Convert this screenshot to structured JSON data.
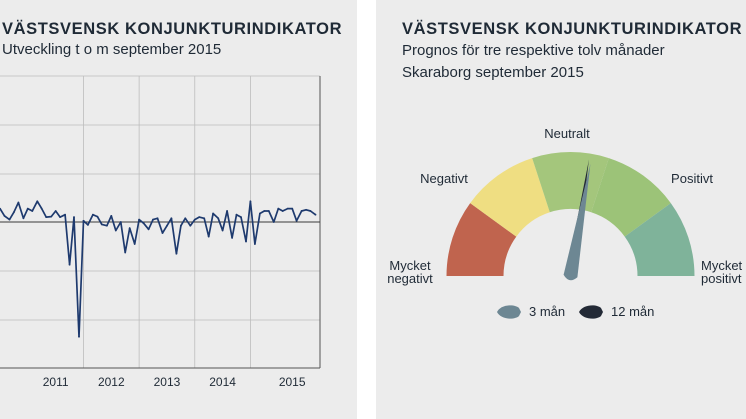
{
  "colors": {
    "panel_bg": "#ececec",
    "line": "#1e3a6e",
    "axis": "#555555",
    "grid": "#bdbdbd",
    "very_negative": "#c0644e",
    "negative": "#efde82",
    "neutral": "#a4c67c",
    "positive": "#9cc378",
    "very_positive": "#7fb39a",
    "needle_3m": "#6d8793",
    "needle_12m": "#232a36"
  },
  "left": {
    "title": "VÄSTSVENSK KONJUNKTURINDIKATOR",
    "subtitle": "Utveckling t o m september 2015"
  },
  "right": {
    "title": "VÄSTSVENSK KONJUNKTURINDIKATOR",
    "subtitle_1": "Prognos för tre respektive tolv månader",
    "subtitle_2": "Skaraborg september 2015"
  },
  "chart_data": [
    {
      "type": "line",
      "title": "VÄSTSVENSK KONJUNKTURINDIKATOR",
      "subtitle": "Utveckling t o m september 2015",
      "x_tick_labels": [
        "2011",
        "2012",
        "2013",
        "2014",
        "2015"
      ],
      "x_range": [
        2010.0,
        2015.75
      ],
      "grid": true,
      "series": [
        {
          "x": [
            2010.0,
            2010.08,
            2010.17,
            2010.25,
            2010.33,
            2010.42,
            2010.5,
            2010.58,
            2010.67,
            2010.75,
            2010.83,
            2010.92,
            2011.0,
            2011.08,
            2011.17,
            2011.25,
            2011.33,
            2011.42,
            2011.5,
            2011.58,
            2011.67,
            2011.75,
            2011.83,
            2011.92,
            2012.0,
            2012.08,
            2012.17,
            2012.25,
            2012.33,
            2012.42,
            2012.5,
            2012.58,
            2012.67,
            2012.75,
            2012.83,
            2012.92,
            2013.0,
            2013.08,
            2013.17,
            2013.25,
            2013.33,
            2013.42,
            2013.5,
            2013.58,
            2013.67,
            2013.75,
            2013.83,
            2013.92,
            2014.0,
            2014.08,
            2014.17,
            2014.25,
            2014.33,
            2014.42,
            2014.5,
            2014.58,
            2014.67,
            2014.75,
            2014.83,
            2014.92,
            2015.0,
            2015.08,
            2015.17,
            2015.25,
            2015.33,
            2015.42,
            2015.5,
            2015.58,
            2015.67
          ],
          "y": [
            0.55,
            0.25,
            0.1,
            0.4,
            0.8,
            0.15,
            0.55,
            0.45,
            0.85,
            0.55,
            0.2,
            0.22,
            0.45,
            0.2,
            0.3,
            -1.75,
            0.2,
            -4.7,
            0.05,
            -0.12,
            0.3,
            0.22,
            -0.1,
            -0.15,
            0.25,
            -0.35,
            0.0,
            -1.25,
            -0.25,
            -0.9,
            0.1,
            -0.05,
            -0.3,
            0.1,
            0.15,
            -0.45,
            -0.15,
            0.15,
            -1.3,
            -0.15,
            0.15,
            -0.15,
            0.1,
            0.2,
            0.15,
            -0.6,
            0.35,
            0.15,
            -0.35,
            0.45,
            -0.65,
            0.3,
            0.2,
            -0.8,
            0.85,
            -0.9,
            0.35,
            0.45,
            0.45,
            0.0,
            0.55,
            0.45,
            0.55,
            0.55,
            0.05,
            0.45,
            0.5,
            0.45,
            0.3
          ]
        }
      ]
    },
    {
      "type": "gauge",
      "title": "VÄSTSVENSK KONJUNKTURINDIKATOR",
      "subtitle": "Prognos för tre respektive tolv månader Skaraborg september 2015",
      "categories": [
        "Mycket negativt",
        "Negativt",
        "Neutralt",
        "Positivt",
        "Mycket positivt"
      ],
      "segment_labels": [
        {
          "lines": [
            "Mycket",
            "negativt"
          ]
        },
        {
          "lines": [
            "Negativt"
          ]
        },
        {
          "lines": [
            "Neutralt"
          ]
        },
        {
          "lines": [
            "Positivt"
          ]
        },
        {
          "lines": [
            "Mycket",
            "positivt"
          ]
        }
      ],
      "scale": [
        0,
        5
      ],
      "series": [
        {
          "name": "3 mån",
          "value": 2.78
        },
        {
          "name": "12 mån",
          "value": 2.75
        }
      ]
    }
  ]
}
